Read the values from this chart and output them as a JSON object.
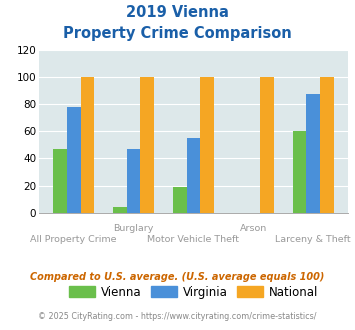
{
  "title_line1": "2019 Vienna",
  "title_line2": "Property Crime Comparison",
  "vienna": [
    47,
    4,
    19,
    0,
    60
  ],
  "virginia": [
    78,
    47,
    55,
    0,
    87
  ],
  "national": [
    100,
    100,
    100,
    100,
    100
  ],
  "vienna_color": "#6abf4b",
  "virginia_color": "#4a90d9",
  "national_color": "#f5a623",
  "bg_color": "#dde8ea",
  "ylim": [
    0,
    120
  ],
  "yticks": [
    0,
    20,
    40,
    60,
    80,
    100,
    120
  ],
  "title_color": "#1a5fa8",
  "xlabel_top_color": "#999999",
  "xlabel_bot_color": "#999999",
  "subtitle_color": "#cc6600",
  "footer_color": "#888888",
  "subtitle_text": "Compared to U.S. average. (U.S. average equals 100)",
  "footer_text": "© 2025 CityRating.com - https://www.cityrating.com/crime-statistics/",
  "legend_labels": [
    "Vienna",
    "Virginia",
    "National"
  ],
  "top_labels": [
    [
      1,
      "Burglary"
    ],
    [
      3,
      "Arson"
    ]
  ],
  "bot_labels": [
    [
      0,
      "All Property Crime"
    ],
    [
      2,
      "Motor Vehicle Theft"
    ],
    [
      4,
      "Larceny & Theft"
    ]
  ]
}
